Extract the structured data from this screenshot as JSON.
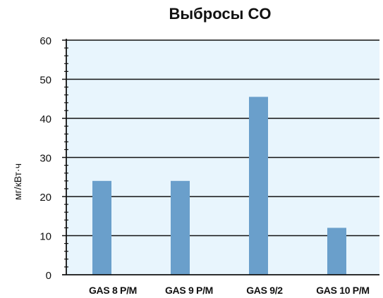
{
  "chart_data": {
    "type": "bar",
    "title": "Выбросы CO",
    "ylabel": "мг/кВт·ч",
    "xlabel": "",
    "categories": [
      "GAS 8 P/M",
      "GAS 9 P/M",
      "GAS 9/2",
      "GAS 10 P/M"
    ],
    "values": [
      24,
      24,
      45.5,
      12
    ],
    "ylim": [
      0,
      60
    ],
    "yticks": [
      0,
      10,
      20,
      30,
      40,
      50,
      60
    ],
    "grid": true,
    "colors": {
      "bar": "#6a9fcb",
      "plot_background": "#e8f5fd",
      "grid": "#111111",
      "axis": "#111111"
    }
  }
}
